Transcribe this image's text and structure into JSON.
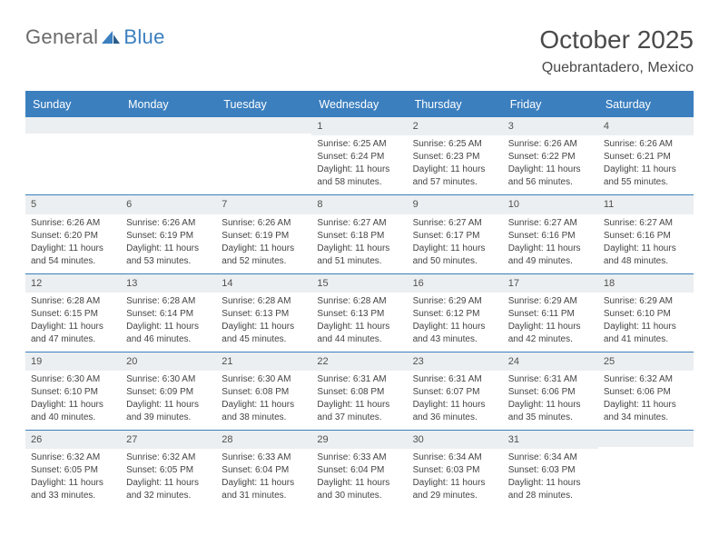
{
  "logo": {
    "text1": "General",
    "text2": "Blue"
  },
  "header": {
    "title": "October 2025",
    "location": "Quebrantadero, Mexico"
  },
  "colors": {
    "accent": "#3b7fbf",
    "dayHeader": "#eceff1",
    "text": "#444444"
  },
  "dow": [
    "Sunday",
    "Monday",
    "Tuesday",
    "Wednesday",
    "Thursday",
    "Friday",
    "Saturday"
  ],
  "weeks": [
    [
      {
        "empty": true
      },
      {
        "empty": true
      },
      {
        "empty": true
      },
      {
        "day": "1",
        "sunrise": "Sunrise: 6:25 AM",
        "sunset": "Sunset: 6:24 PM",
        "day1": "Daylight: 11 hours",
        "day2": "and 58 minutes."
      },
      {
        "day": "2",
        "sunrise": "Sunrise: 6:25 AM",
        "sunset": "Sunset: 6:23 PM",
        "day1": "Daylight: 11 hours",
        "day2": "and 57 minutes."
      },
      {
        "day": "3",
        "sunrise": "Sunrise: 6:26 AM",
        "sunset": "Sunset: 6:22 PM",
        "day1": "Daylight: 11 hours",
        "day2": "and 56 minutes."
      },
      {
        "day": "4",
        "sunrise": "Sunrise: 6:26 AM",
        "sunset": "Sunset: 6:21 PM",
        "day1": "Daylight: 11 hours",
        "day2": "and 55 minutes."
      }
    ],
    [
      {
        "day": "5",
        "sunrise": "Sunrise: 6:26 AM",
        "sunset": "Sunset: 6:20 PM",
        "day1": "Daylight: 11 hours",
        "day2": "and 54 minutes."
      },
      {
        "day": "6",
        "sunrise": "Sunrise: 6:26 AM",
        "sunset": "Sunset: 6:19 PM",
        "day1": "Daylight: 11 hours",
        "day2": "and 53 minutes."
      },
      {
        "day": "7",
        "sunrise": "Sunrise: 6:26 AM",
        "sunset": "Sunset: 6:19 PM",
        "day1": "Daylight: 11 hours",
        "day2": "and 52 minutes."
      },
      {
        "day": "8",
        "sunrise": "Sunrise: 6:27 AM",
        "sunset": "Sunset: 6:18 PM",
        "day1": "Daylight: 11 hours",
        "day2": "and 51 minutes."
      },
      {
        "day": "9",
        "sunrise": "Sunrise: 6:27 AM",
        "sunset": "Sunset: 6:17 PM",
        "day1": "Daylight: 11 hours",
        "day2": "and 50 minutes."
      },
      {
        "day": "10",
        "sunrise": "Sunrise: 6:27 AM",
        "sunset": "Sunset: 6:16 PM",
        "day1": "Daylight: 11 hours",
        "day2": "and 49 minutes."
      },
      {
        "day": "11",
        "sunrise": "Sunrise: 6:27 AM",
        "sunset": "Sunset: 6:16 PM",
        "day1": "Daylight: 11 hours",
        "day2": "and 48 minutes."
      }
    ],
    [
      {
        "day": "12",
        "sunrise": "Sunrise: 6:28 AM",
        "sunset": "Sunset: 6:15 PM",
        "day1": "Daylight: 11 hours",
        "day2": "and 47 minutes."
      },
      {
        "day": "13",
        "sunrise": "Sunrise: 6:28 AM",
        "sunset": "Sunset: 6:14 PM",
        "day1": "Daylight: 11 hours",
        "day2": "and 46 minutes."
      },
      {
        "day": "14",
        "sunrise": "Sunrise: 6:28 AM",
        "sunset": "Sunset: 6:13 PM",
        "day1": "Daylight: 11 hours",
        "day2": "and 45 minutes."
      },
      {
        "day": "15",
        "sunrise": "Sunrise: 6:28 AM",
        "sunset": "Sunset: 6:13 PM",
        "day1": "Daylight: 11 hours",
        "day2": "and 44 minutes."
      },
      {
        "day": "16",
        "sunrise": "Sunrise: 6:29 AM",
        "sunset": "Sunset: 6:12 PM",
        "day1": "Daylight: 11 hours",
        "day2": "and 43 minutes."
      },
      {
        "day": "17",
        "sunrise": "Sunrise: 6:29 AM",
        "sunset": "Sunset: 6:11 PM",
        "day1": "Daylight: 11 hours",
        "day2": "and 42 minutes."
      },
      {
        "day": "18",
        "sunrise": "Sunrise: 6:29 AM",
        "sunset": "Sunset: 6:10 PM",
        "day1": "Daylight: 11 hours",
        "day2": "and 41 minutes."
      }
    ],
    [
      {
        "day": "19",
        "sunrise": "Sunrise: 6:30 AM",
        "sunset": "Sunset: 6:10 PM",
        "day1": "Daylight: 11 hours",
        "day2": "and 40 minutes."
      },
      {
        "day": "20",
        "sunrise": "Sunrise: 6:30 AM",
        "sunset": "Sunset: 6:09 PM",
        "day1": "Daylight: 11 hours",
        "day2": "and 39 minutes."
      },
      {
        "day": "21",
        "sunrise": "Sunrise: 6:30 AM",
        "sunset": "Sunset: 6:08 PM",
        "day1": "Daylight: 11 hours",
        "day2": "and 38 minutes."
      },
      {
        "day": "22",
        "sunrise": "Sunrise: 6:31 AM",
        "sunset": "Sunset: 6:08 PM",
        "day1": "Daylight: 11 hours",
        "day2": "and 37 minutes."
      },
      {
        "day": "23",
        "sunrise": "Sunrise: 6:31 AM",
        "sunset": "Sunset: 6:07 PM",
        "day1": "Daylight: 11 hours",
        "day2": "and 36 minutes."
      },
      {
        "day": "24",
        "sunrise": "Sunrise: 6:31 AM",
        "sunset": "Sunset: 6:06 PM",
        "day1": "Daylight: 11 hours",
        "day2": "and 35 minutes."
      },
      {
        "day": "25",
        "sunrise": "Sunrise: 6:32 AM",
        "sunset": "Sunset: 6:06 PM",
        "day1": "Daylight: 11 hours",
        "day2": "and 34 minutes."
      }
    ],
    [
      {
        "day": "26",
        "sunrise": "Sunrise: 6:32 AM",
        "sunset": "Sunset: 6:05 PM",
        "day1": "Daylight: 11 hours",
        "day2": "and 33 minutes."
      },
      {
        "day": "27",
        "sunrise": "Sunrise: 6:32 AM",
        "sunset": "Sunset: 6:05 PM",
        "day1": "Daylight: 11 hours",
        "day2": "and 32 minutes."
      },
      {
        "day": "28",
        "sunrise": "Sunrise: 6:33 AM",
        "sunset": "Sunset: 6:04 PM",
        "day1": "Daylight: 11 hours",
        "day2": "and 31 minutes."
      },
      {
        "day": "29",
        "sunrise": "Sunrise: 6:33 AM",
        "sunset": "Sunset: 6:04 PM",
        "day1": "Daylight: 11 hours",
        "day2": "and 30 minutes."
      },
      {
        "day": "30",
        "sunrise": "Sunrise: 6:34 AM",
        "sunset": "Sunset: 6:03 PM",
        "day1": "Daylight: 11 hours",
        "day2": "and 29 minutes."
      },
      {
        "day": "31",
        "sunrise": "Sunrise: 6:34 AM",
        "sunset": "Sunset: 6:03 PM",
        "day1": "Daylight: 11 hours",
        "day2": "and 28 minutes."
      },
      {
        "empty": true
      }
    ]
  ]
}
